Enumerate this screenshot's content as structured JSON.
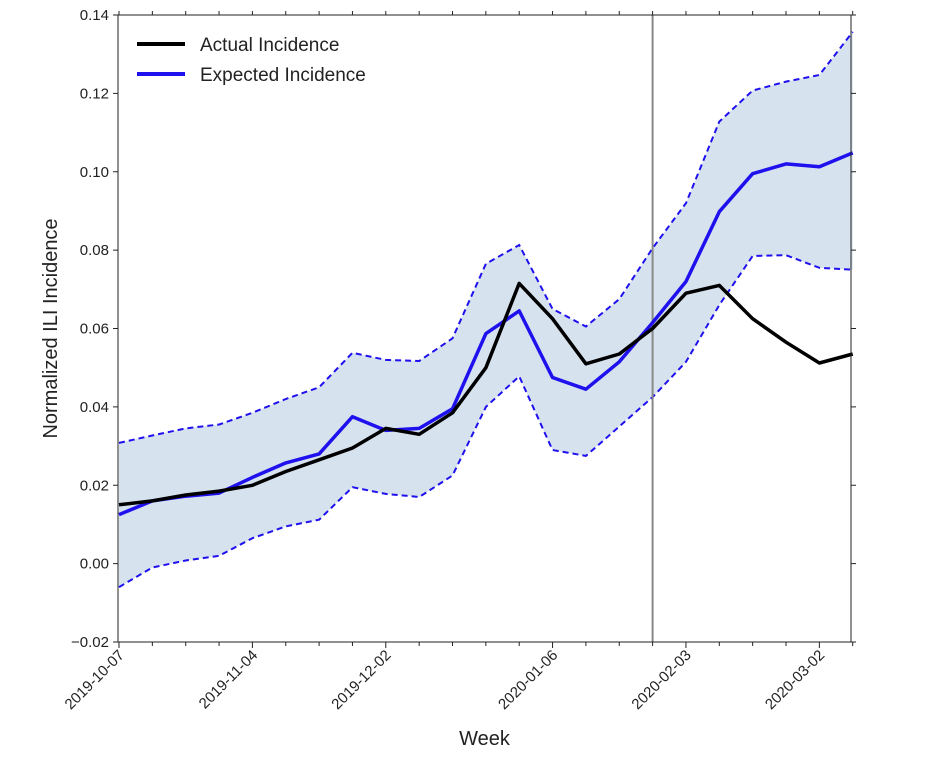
{
  "chart_data": {
    "type": "line",
    "xlabel": "Week",
    "ylabel": "Normalized ILI Incidence",
    "ylim": [
      -0.02,
      0.14
    ],
    "yticks": [
      "−0.02",
      "0.00",
      "0.02",
      "0.04",
      "0.06",
      "0.08",
      "0.10",
      "0.12",
      "0.14"
    ],
    "ytick_values": [
      -0.02,
      0.0,
      0.02,
      0.04,
      0.06,
      0.08,
      0.1,
      0.12,
      0.14
    ],
    "x": [
      "2019-10-07",
      "2019-10-14",
      "2019-10-21",
      "2019-10-28",
      "2019-11-04",
      "2019-11-11",
      "2019-11-18",
      "2019-11-25",
      "2019-12-02",
      "2019-12-09",
      "2019-12-16",
      "2019-12-23",
      "2019-12-30",
      "2020-01-06",
      "2020-01-13",
      "2020-01-20",
      "2020-01-27",
      "2020-02-03",
      "2020-02-10",
      "2020-02-17",
      "2020-02-24",
      "2020-03-02",
      "2020-03-09"
    ],
    "xticks": [
      "2019-10-07",
      "2019-11-04",
      "2019-12-02",
      "2020-01-06",
      "2020-02-03",
      "2020-03-02"
    ],
    "vertical_line_at": "2020-01-27",
    "legend_position": "upper-left",
    "series": [
      {
        "name": "Actual Incidence",
        "color": "#000000",
        "style": "solid",
        "values": [
          0.015,
          0.016,
          0.0175,
          0.0185,
          0.02,
          0.0235,
          0.0265,
          0.0295,
          0.0345,
          0.033,
          0.0385,
          0.05,
          0.0715,
          0.0625,
          0.051,
          0.0535,
          0.06,
          0.069,
          0.071,
          0.0625,
          0.0565,
          0.0512,
          0.0535
        ]
      },
      {
        "name": "Expected Incidence",
        "color": "#1f10ee",
        "style": "solid",
        "values": [
          0.0125,
          0.016,
          0.0172,
          0.018,
          0.022,
          0.0257,
          0.028,
          0.0375,
          0.034,
          0.0345,
          0.0395,
          0.0587,
          0.0645,
          0.0475,
          0.0445,
          0.0515,
          0.0615,
          0.072,
          0.0898,
          0.0995,
          0.102,
          0.1013,
          0.1048
        ]
      }
    ],
    "band": {
      "color": "#d6e3ef",
      "line_color": "#1f10ee",
      "upper": [
        0.0308,
        0.0327,
        0.0345,
        0.0355,
        0.0385,
        0.042,
        0.045,
        0.0538,
        0.052,
        0.0517,
        0.0575,
        0.0765,
        0.0813,
        0.065,
        0.0605,
        0.0675,
        0.0805,
        0.092,
        0.1128,
        0.1207,
        0.123,
        0.1247,
        0.1357
      ],
      "lower": [
        -0.006,
        -0.001,
        0.0008,
        0.002,
        0.0065,
        0.0095,
        0.0112,
        0.0195,
        0.0178,
        0.017,
        0.0225,
        0.04,
        0.0478,
        0.029,
        0.0275,
        0.035,
        0.0425,
        0.0515,
        0.066,
        0.0785,
        0.0787,
        0.0755,
        0.075
      ]
    }
  }
}
